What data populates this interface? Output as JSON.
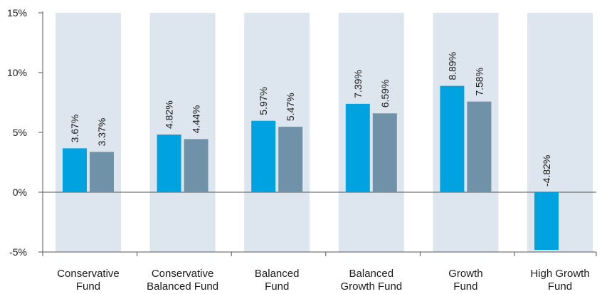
{
  "chart_data": {
    "type": "bar",
    "categories": [
      [
        "Conservative",
        "Fund"
      ],
      [
        "Conservative",
        "Balanced Fund"
      ],
      [
        "Balanced",
        "Fund"
      ],
      [
        "Balanced",
        "Growth Fund"
      ],
      [
        "Growth",
        "Fund"
      ],
      [
        "High Growth",
        "Fund"
      ]
    ],
    "series": [
      {
        "values": [
          3.67,
          4.82,
          5.97,
          7.39,
          8.89,
          -4.82
        ],
        "labels": [
          "3.67%",
          "4.82%",
          "5.97%",
          "7.39%",
          "8.89%",
          "-4.82%"
        ]
      },
      {
        "values": [
          3.37,
          4.44,
          5.47,
          6.59,
          7.58,
          null
        ],
        "labels": [
          "3.37%",
          "4.44%",
          "5.47%",
          "6.59%",
          "7.58%",
          null
        ]
      }
    ],
    "ylim": [
      -5,
      15
    ],
    "yticks": [
      15,
      10,
      5,
      0,
      -5
    ],
    "ytick_labels": [
      "15%",
      "10%",
      "5%",
      "0%",
      "-5%"
    ],
    "colors": {
      "series1": "#00a3e0",
      "series2": "#7092a8",
      "band": "#dde6ee",
      "axis": "#555555"
    },
    "grid": false
  }
}
